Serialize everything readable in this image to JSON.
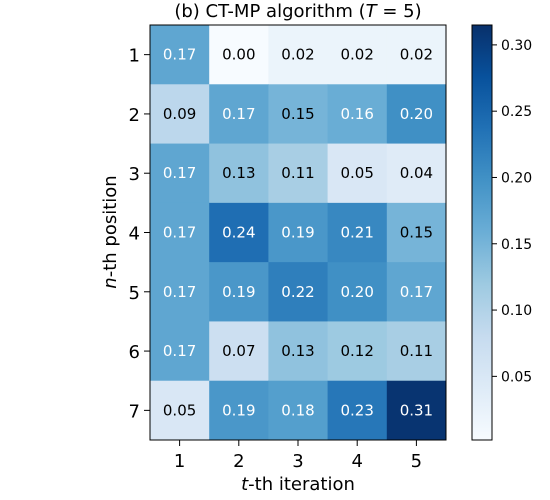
{
  "chart_data": {
    "type": "heatmap",
    "title_prefix": "(b) CT-MP algorithm (",
    "title_var": "T",
    "title_suffix": " = 5)",
    "xlabel_var": "t",
    "xlabel_text": "-th iteration",
    "ylabel_var": "n",
    "ylabel_text": "-th position",
    "x_categories": [
      "1",
      "2",
      "3",
      "4",
      "5"
    ],
    "y_categories": [
      "1",
      "2",
      "3",
      "4",
      "5",
      "6",
      "7"
    ],
    "values": [
      [
        0.17,
        0.0,
        0.02,
        0.02,
        0.02
      ],
      [
        0.09,
        0.17,
        0.15,
        0.16,
        0.2
      ],
      [
        0.17,
        0.13,
        0.11,
        0.05,
        0.04
      ],
      [
        0.17,
        0.24,
        0.19,
        0.21,
        0.15
      ],
      [
        0.17,
        0.19,
        0.22,
        0.2,
        0.17
      ],
      [
        0.17,
        0.07,
        0.13,
        0.12,
        0.11
      ],
      [
        0.05,
        0.19,
        0.18,
        0.23,
        0.31
      ]
    ],
    "value_labels": [
      [
        "0.17",
        "0.00",
        "0.02",
        "0.02",
        "0.02"
      ],
      [
        "0.09",
        "0.17",
        "0.15",
        "0.16",
        "0.20"
      ],
      [
        "0.17",
        "0.13",
        "0.11",
        "0.05",
        "0.04"
      ],
      [
        "0.17",
        "0.24",
        "0.19",
        "0.21",
        "0.15"
      ],
      [
        "0.17",
        "0.19",
        "0.22",
        "0.20",
        "0.17"
      ],
      [
        "0.17",
        "0.07",
        "0.13",
        "0.12",
        "0.11"
      ],
      [
        "0.05",
        "0.19",
        "0.18",
        "0.23",
        "0.31"
      ]
    ],
    "colorbar": {
      "colormap": "Blues",
      "range": [
        0.002,
        0.315
      ],
      "ticks": [
        0.05,
        0.1,
        0.15,
        0.2,
        0.25,
        0.3
      ],
      "tick_labels": [
        "0.05",
        "0.10",
        "0.15",
        "0.20",
        "0.25",
        "0.30"
      ]
    },
    "grid": false
  }
}
